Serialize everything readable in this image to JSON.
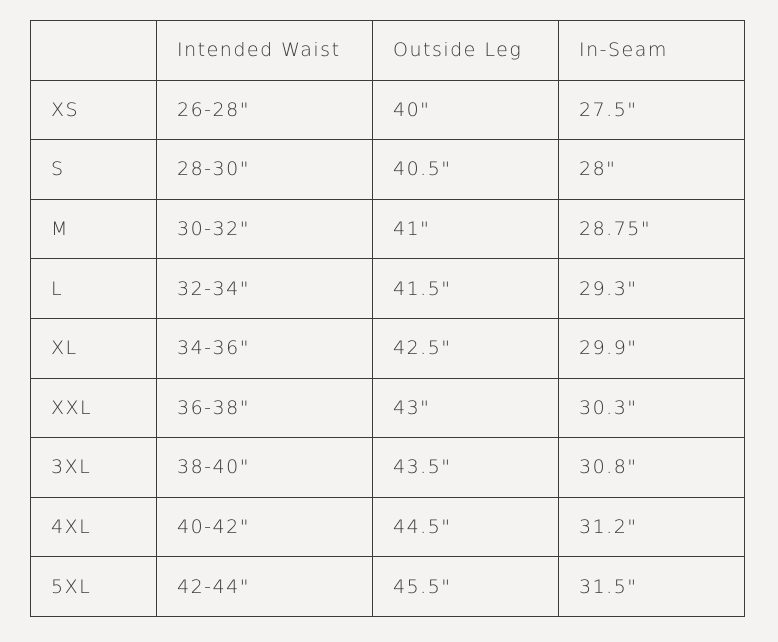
{
  "size_chart": {
    "headers": [
      "",
      "Intended Waist",
      "Outside Leg",
      "In-Seam"
    ],
    "rows": [
      [
        "XS",
        "26-28\"",
        "40\"",
        "27.5\""
      ],
      [
        "S",
        "28-30\"",
        "40.5\"",
        "28\""
      ],
      [
        "M",
        "30-32\"",
        "41\"",
        "28.75\""
      ],
      [
        "L",
        "32-34\"",
        "41.5\"",
        "29.3\""
      ],
      [
        "XL",
        "34-36\"",
        "42.5\"",
        "29.9\""
      ],
      [
        "XXL",
        "36-38\"",
        "43\"",
        "30.3\""
      ],
      [
        "3XL",
        "38-40\"",
        "43.5\"",
        "30.8\""
      ],
      [
        "4XL",
        "40-42\"",
        "44.5\"",
        "31.2\""
      ],
      [
        "5XL",
        "42-44\"",
        "45.5\"",
        "31.5\""
      ]
    ]
  }
}
